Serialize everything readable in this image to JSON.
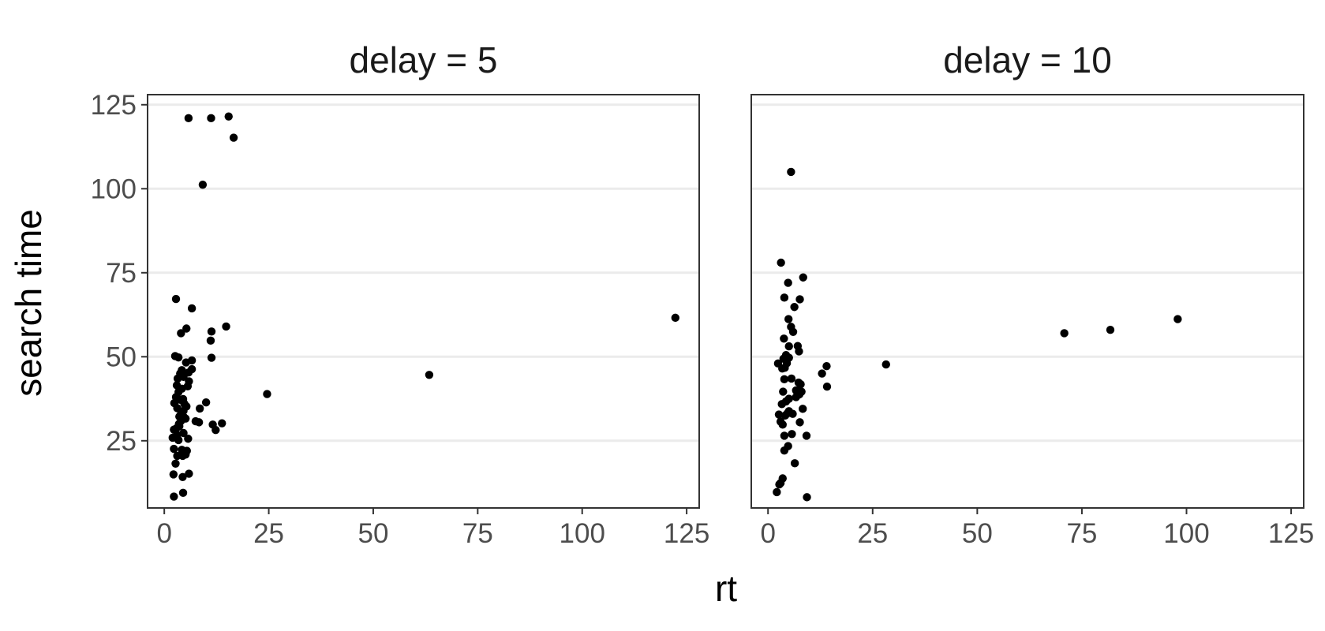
{
  "chart_data": {
    "type": "scatter",
    "xlabel": "rt",
    "ylabel": "search time",
    "xlim": [
      -4,
      128
    ],
    "ylim": [
      5,
      128
    ],
    "x_ticks": [
      0,
      25,
      50,
      75,
      100,
      125
    ],
    "y_ticks": [
      25,
      50,
      75,
      100,
      125
    ],
    "grid": "horizontal major lines only",
    "colors": {
      "point": "#000000",
      "grid": "#ebebeb",
      "panel_border": "#333333",
      "tick_text": "#4d4d4d"
    },
    "panels": [
      {
        "title": "delay = 5",
        "points": [
          [
            5.8,
            121.0
          ],
          [
            11.2,
            121.0
          ],
          [
            15.4,
            121.5
          ],
          [
            16.6,
            115.2
          ],
          [
            9.2,
            101.2
          ],
          [
            122.3,
            61.6
          ],
          [
            63.4,
            44.6
          ],
          [
            24.6,
            38.9
          ],
          [
            2.8,
            67.2
          ],
          [
            6.6,
            64.4
          ],
          [
            5.3,
            58.4
          ],
          [
            4.0,
            57.0
          ],
          [
            14.8,
            59.0
          ],
          [
            11.3,
            57.5
          ],
          [
            11.1,
            54.8
          ],
          [
            2.6,
            50.2
          ],
          [
            3.4,
            49.8
          ],
          [
            11.3,
            49.7
          ],
          [
            5.2,
            48.3
          ],
          [
            6.6,
            48.9
          ],
          [
            6.6,
            46.3
          ],
          [
            4.2,
            46.0
          ],
          [
            3.8,
            45.0
          ],
          [
            5.8,
            45.3
          ],
          [
            4.6,
            44.0
          ],
          [
            3.2,
            43.5
          ],
          [
            5.9,
            42.7
          ],
          [
            5.6,
            41.2
          ],
          [
            3.0,
            41.5
          ],
          [
            4.2,
            40.5
          ],
          [
            3.4,
            39.5
          ],
          [
            2.8,
            38.0
          ],
          [
            4.5,
            37.4
          ],
          [
            3.8,
            37.2
          ],
          [
            10.0,
            36.4
          ],
          [
            2.4,
            36.2
          ],
          [
            4.8,
            36.0
          ],
          [
            5.3,
            35.2
          ],
          [
            3.1,
            34.7
          ],
          [
            8.5,
            34.6
          ],
          [
            4.6,
            33.9
          ],
          [
            4.0,
            33.0
          ],
          [
            3.6,
            32.2
          ],
          [
            4.7,
            32.0
          ],
          [
            5.1,
            31.6
          ],
          [
            4.0,
            30.9
          ],
          [
            3.5,
            30.0
          ],
          [
            7.5,
            30.8
          ],
          [
            8.3,
            30.5
          ],
          [
            13.8,
            30.2
          ],
          [
            11.6,
            29.8
          ],
          [
            3.6,
            29.3
          ],
          [
            2.9,
            28.7
          ],
          [
            2.3,
            28.3
          ],
          [
            12.3,
            28.2
          ],
          [
            4.6,
            27.3
          ],
          [
            3.1,
            26.7
          ],
          [
            2.0,
            25.9
          ],
          [
            5.7,
            25.6
          ],
          [
            3.4,
            25.2
          ],
          [
            2.3,
            22.6
          ],
          [
            4.2,
            22.3
          ],
          [
            5.4,
            22.0
          ],
          [
            5.1,
            20.9
          ],
          [
            4.4,
            20.5
          ],
          [
            3.1,
            20.5
          ],
          [
            2.7,
            18.2
          ],
          [
            5.9,
            15.2
          ],
          [
            4.4,
            14.2
          ],
          [
            2.2,
            15.0
          ],
          [
            4.5,
            9.5
          ],
          [
            2.3,
            8.4
          ]
        ]
      },
      {
        "title": "delay = 10",
        "points": [
          [
            5.5,
            105.0
          ],
          [
            3.1,
            78.0
          ],
          [
            8.4,
            73.6
          ],
          [
            4.8,
            72.0
          ],
          [
            3.9,
            67.6
          ],
          [
            7.6,
            67.1
          ],
          [
            6.3,
            64.8
          ],
          [
            4.9,
            61.2
          ],
          [
            5.5,
            58.9
          ],
          [
            6.0,
            57.4
          ],
          [
            70.8,
            57.0
          ],
          [
            81.8,
            58.0
          ],
          [
            97.9,
            61.2
          ],
          [
            3.8,
            55.4
          ],
          [
            5.0,
            53.1
          ],
          [
            7.1,
            53.2
          ],
          [
            7.4,
            51.6
          ],
          [
            4.3,
            50.5
          ],
          [
            3.7,
            49.4
          ],
          [
            5.0,
            49.7
          ],
          [
            4.5,
            48.1
          ],
          [
            2.4,
            48.0
          ],
          [
            28.2,
            47.7
          ],
          [
            14.0,
            47.2
          ],
          [
            4.0,
            46.7
          ],
          [
            3.4,
            46.5
          ],
          [
            12.9,
            45.0
          ],
          [
            5.6,
            43.5
          ],
          [
            3.9,
            43.3
          ],
          [
            7.3,
            42.3
          ],
          [
            7.8,
            41.8
          ],
          [
            14.1,
            41.1
          ],
          [
            6.7,
            40.0
          ],
          [
            8.0,
            39.6
          ],
          [
            3.6,
            39.6
          ],
          [
            7.5,
            38.8
          ],
          [
            6.7,
            38.0
          ],
          [
            5.0,
            37.5
          ],
          [
            4.3,
            36.7
          ],
          [
            3.3,
            35.9
          ],
          [
            8.3,
            34.5
          ],
          [
            5.0,
            33.8
          ],
          [
            2.6,
            32.8
          ],
          [
            4.6,
            33.1
          ],
          [
            5.9,
            33.0
          ],
          [
            4.1,
            32.5
          ],
          [
            3.0,
            30.7
          ],
          [
            7.6,
            30.5
          ],
          [
            3.5,
            29.8
          ],
          [
            5.7,
            27.0
          ],
          [
            3.9,
            26.5
          ],
          [
            9.2,
            26.5
          ],
          [
            4.8,
            23.4
          ],
          [
            3.9,
            22.1
          ],
          [
            6.4,
            18.3
          ],
          [
            3.5,
            13.8
          ],
          [
            3.0,
            12.4
          ],
          [
            2.7,
            12.0
          ],
          [
            2.1,
            9.7
          ],
          [
            9.3,
            8.2
          ]
        ]
      }
    ]
  }
}
